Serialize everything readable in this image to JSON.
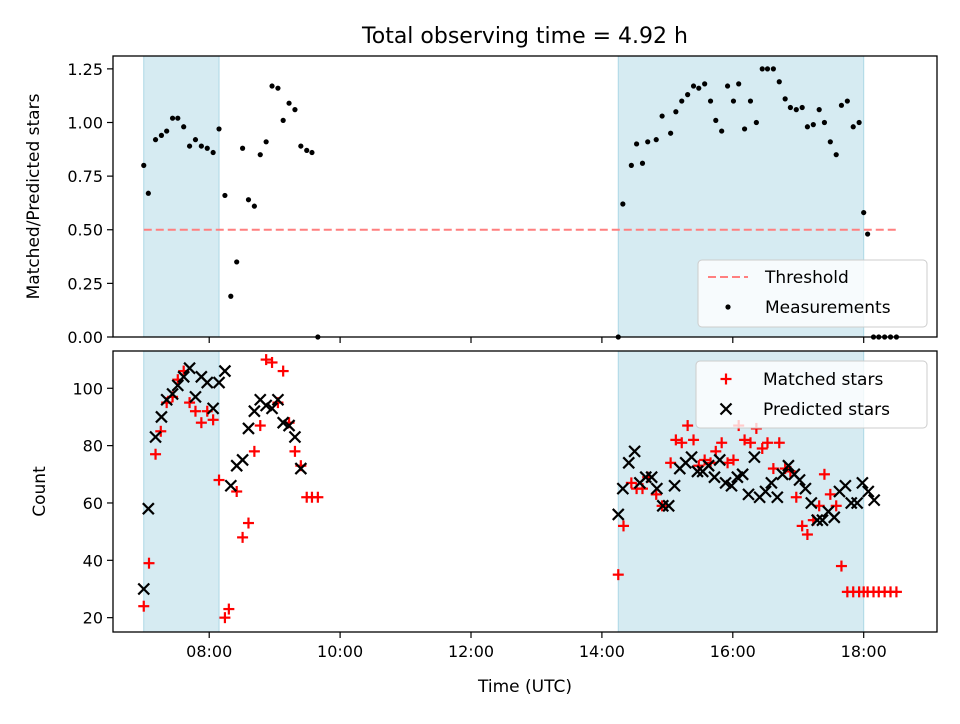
{
  "figure": {
    "title": "Total observing time = 4.92 h"
  },
  "chart_data": [
    {
      "type": "scatter",
      "panel": "top",
      "xlabel": "",
      "ylabel": "Matched/Predicted stars",
      "xlim": [
        6.53,
        19.12
      ],
      "ylim": [
        0.0,
        1.31
      ],
      "y_ticks": [
        0.0,
        0.25,
        0.5,
        0.75,
        1.0,
        1.25
      ],
      "y_tick_labels": [
        "0.00",
        "0.25",
        "0.50",
        "0.75",
        "1.00",
        "1.25"
      ],
      "x_ticks": [
        8,
        10,
        12,
        14,
        16,
        18
      ],
      "shaded_spans": [
        [
          7.0,
          8.15
        ],
        [
          14.25,
          18.0
        ]
      ],
      "threshold": {
        "name": "Threshold",
        "y": 0.5,
        "x_range": [
          7.0,
          18.53
        ],
        "color": "#ff7f7f"
      },
      "series": [
        {
          "name": "Measurements",
          "color": "#000000",
          "x": [
            7.0,
            7.07,
            7.18,
            7.27,
            7.35,
            7.44,
            7.52,
            7.61,
            7.7,
            7.79,
            7.88,
            7.97,
            8.06,
            8.15,
            8.24,
            8.33,
            8.42,
            8.51,
            8.6,
            8.69,
            8.78,
            8.87,
            8.96,
            9.05,
            9.13,
            9.22,
            9.31,
            9.4,
            9.49,
            9.57,
            9.66,
            14.25,
            14.32,
            14.45,
            14.53,
            14.62,
            14.7,
            14.83,
            14.92,
            15.05,
            15.13,
            15.22,
            15.31,
            15.4,
            15.48,
            15.57,
            15.66,
            15.74,
            15.83,
            15.92,
            16.01,
            16.09,
            16.18,
            16.27,
            16.36,
            16.45,
            16.53,
            16.62,
            16.71,
            16.8,
            16.88,
            16.97,
            17.06,
            17.14,
            17.23,
            17.32,
            17.4,
            17.49,
            17.58,
            17.66,
            17.75,
            17.84,
            17.93,
            18.0,
            18.06,
            18.15,
            18.23,
            18.32,
            18.41,
            18.5
          ],
          "y": [
            0.8,
            0.67,
            0.92,
            0.94,
            0.96,
            1.02,
            1.02,
            0.98,
            0.89,
            0.92,
            0.89,
            0.88,
            0.86,
            0.97,
            0.66,
            0.19,
            0.35,
            0.88,
            0.64,
            0.61,
            0.85,
            0.91,
            1.17,
            1.16,
            1.01,
            1.09,
            1.06,
            0.89,
            0.87,
            0.86,
            0.0,
            0.0,
            0.62,
            0.8,
            0.9,
            0.81,
            0.91,
            0.92,
            1.03,
            0.95,
            1.05,
            1.1,
            1.13,
            1.17,
            1.16,
            1.18,
            1.1,
            1.01,
            0.96,
            1.17,
            1.1,
            1.18,
            0.97,
            1.1,
            1.0,
            1.25,
            1.25,
            1.25,
            1.19,
            1.11,
            1.07,
            1.06,
            1.07,
            0.98,
            0.99,
            1.06,
            1.0,
            0.91,
            0.85,
            1.08,
            1.1,
            0.98,
            1.0,
            0.58,
            0.48,
            0.0,
            0.0,
            0.0,
            0.0,
            0.0
          ]
        }
      ],
      "legend": {
        "placement": "lower-right",
        "entries": [
          "Threshold",
          "Measurements"
        ]
      }
    },
    {
      "type": "scatter",
      "panel": "bottom",
      "xlabel": "Time (UTC)",
      "ylabel": "Count",
      "xlim": [
        6.53,
        19.12
      ],
      "ylim": [
        15,
        113
      ],
      "y_ticks": [
        20,
        40,
        60,
        80,
        100
      ],
      "x_ticks": [
        8,
        10,
        12,
        14,
        16,
        18
      ],
      "x_tick_labels": [
        "08:00",
        "10:00",
        "12:00",
        "14:00",
        "16:00",
        "18:00"
      ],
      "shaded_spans": [
        [
          7.0,
          8.15
        ],
        [
          14.25,
          18.0
        ]
      ],
      "series": [
        {
          "name": "Matched stars",
          "marker": "plus",
          "color": "#ff0000",
          "x": [
            7.0,
            7.08,
            7.18,
            7.26,
            7.35,
            7.44,
            7.52,
            7.61,
            7.7,
            7.79,
            7.88,
            7.97,
            8.06,
            8.15,
            8.24,
            8.3,
            8.42,
            8.51,
            8.6,
            8.69,
            8.78,
            8.87,
            8.96,
            9.05,
            9.13,
            9.22,
            9.31,
            9.4,
            9.49,
            9.57,
            9.66,
            14.25,
            14.33,
            14.45,
            14.53,
            14.62,
            14.7,
            14.83,
            14.92,
            15.05,
            15.13,
            15.22,
            15.31,
            15.4,
            15.48,
            15.57,
            15.66,
            15.74,
            15.83,
            15.92,
            16.01,
            16.09,
            16.18,
            16.27,
            16.36,
            16.45,
            16.53,
            16.62,
            16.71,
            16.8,
            16.88,
            16.97,
            17.06,
            17.14,
            17.23,
            17.32,
            17.4,
            17.49,
            17.58,
            17.66,
            17.75,
            17.84,
            17.93,
            18.0,
            18.06,
            18.15,
            18.23,
            18.32,
            18.41,
            18.5
          ],
          "y": [
            24,
            39,
            77,
            85,
            95,
            97,
            103,
            106,
            95,
            92,
            88,
            92,
            89,
            68,
            20,
            23,
            64,
            48,
            53,
            78,
            87,
            110,
            109,
            95,
            106,
            88,
            78,
            73,
            62,
            62,
            62,
            35,
            52,
            67,
            65,
            65,
            69,
            63,
            59,
            74,
            82,
            81,
            87,
            82,
            73,
            75,
            74,
            78,
            81,
            74,
            75,
            87,
            82,
            81,
            86,
            79,
            81,
            72,
            81,
            72,
            71,
            62,
            52,
            49,
            54,
            59,
            70,
            63,
            59,
            38,
            29,
            29,
            29,
            29,
            29,
            29,
            29,
            29,
            29,
            29
          ]
        },
        {
          "name": "Predicted stars",
          "marker": "x",
          "color": "#000000",
          "x": [
            7.0,
            7.07,
            7.18,
            7.27,
            7.35,
            7.44,
            7.52,
            7.61,
            7.7,
            7.79,
            7.88,
            7.97,
            8.06,
            8.15,
            8.24,
            8.33,
            8.42,
            8.51,
            8.6,
            8.69,
            8.78,
            8.87,
            8.96,
            9.05,
            9.13,
            9.22,
            9.31,
            9.4,
            14.25,
            14.32,
            14.41,
            14.5,
            14.58,
            14.67,
            14.76,
            14.84,
            14.93,
            15.02,
            15.11,
            15.19,
            15.28,
            15.37,
            15.46,
            15.54,
            15.63,
            15.72,
            15.8,
            15.89,
            15.98,
            16.07,
            16.15,
            16.24,
            16.33,
            16.41,
            16.5,
            16.59,
            16.68,
            16.76,
            16.85,
            16.94,
            17.02,
            17.11,
            17.2,
            17.29,
            17.37,
            17.46,
            17.55,
            17.63,
            17.72,
            17.81,
            17.9,
            17.98,
            18.07,
            18.16
          ],
          "y": [
            30,
            58,
            83,
            90,
            96,
            98,
            101,
            104,
            107,
            97,
            104,
            102,
            93,
            102,
            106,
            66,
            73,
            75,
            86,
            92,
            96,
            94,
            93,
            96,
            88,
            87,
            83,
            72,
            56,
            65,
            74,
            78,
            67,
            69,
            69,
            65,
            59,
            59,
            66,
            72,
            74,
            76,
            71,
            71,
            73,
            69,
            75,
            67,
            66,
            69,
            70,
            63,
            76,
            62,
            64,
            67,
            62,
            70,
            73,
            70,
            68,
            65,
            60,
            54,
            54,
            57,
            55,
            64,
            66,
            60,
            60,
            67,
            64,
            61
          ]
        }
      ],
      "legend": {
        "placement": "upper-right",
        "entries": [
          "Matched stars",
          "Predicted stars"
        ]
      }
    }
  ]
}
